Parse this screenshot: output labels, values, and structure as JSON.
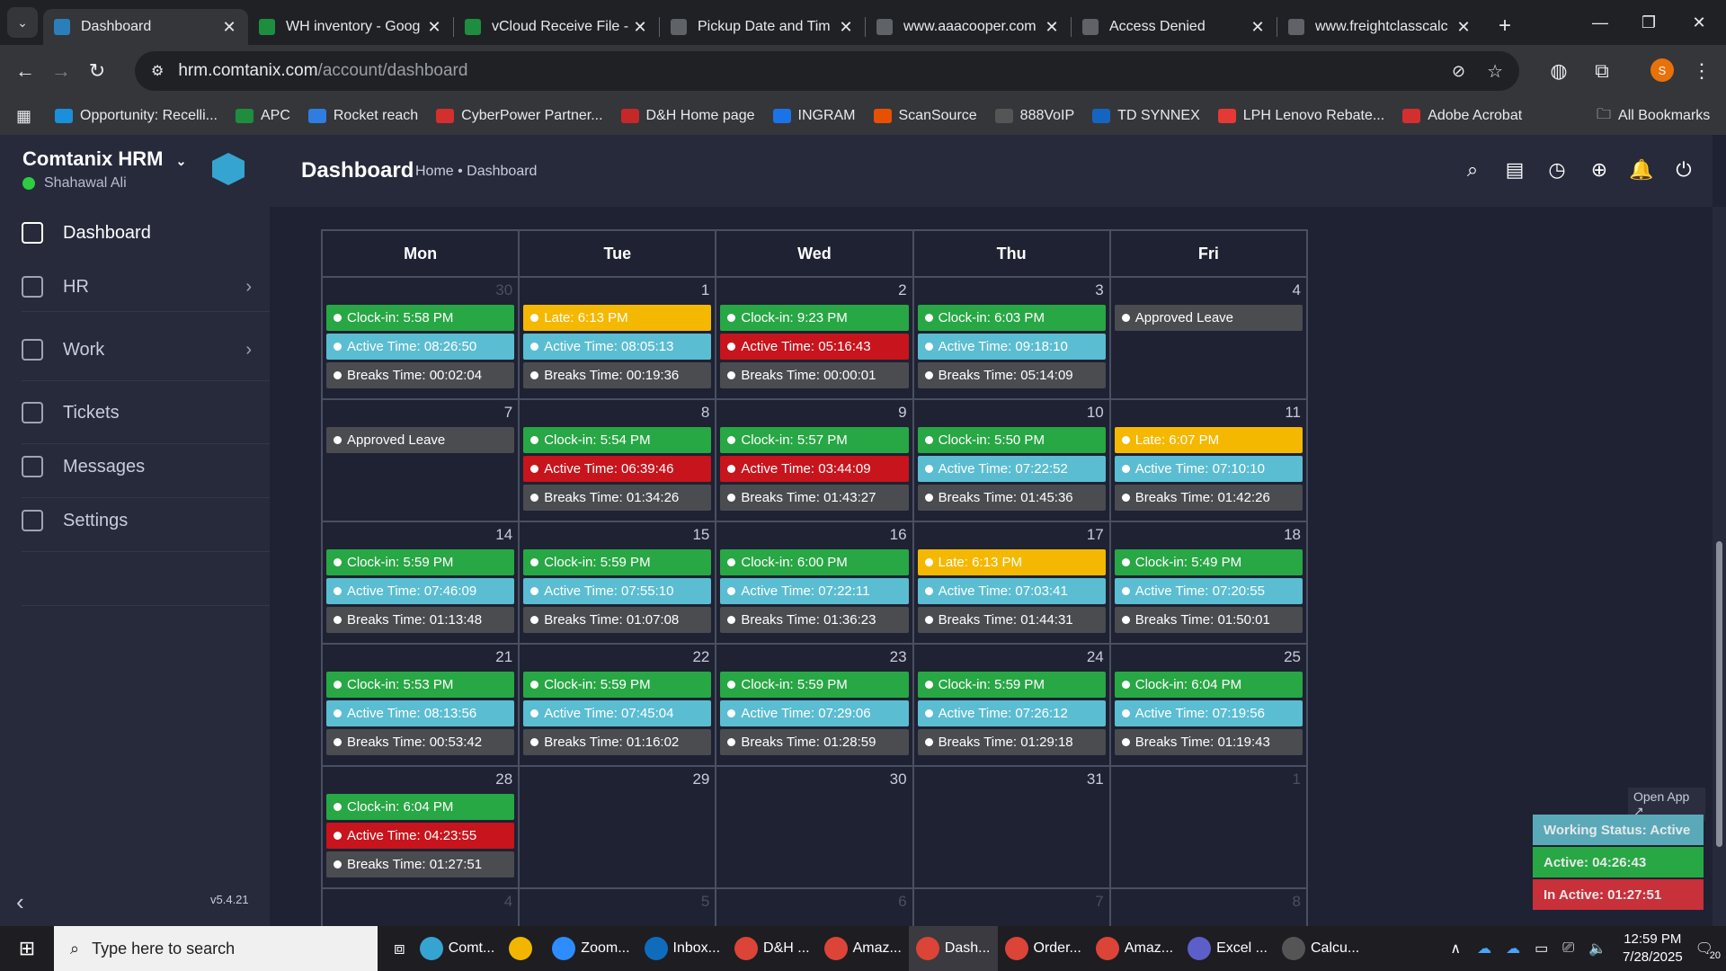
{
  "browser": {
    "tabs": [
      {
        "title": "Dashboard",
        "icon": "comtanix-icon",
        "color": "#2a7fb8",
        "active": true
      },
      {
        "title": "WH inventory - Goog",
        "icon": "sheets-icon",
        "color": "#1e8e3e"
      },
      {
        "title": "vCloud Receive File -",
        "icon": "sheets-icon",
        "color": "#1e8e3e"
      },
      {
        "title": "Pickup Date and Tim",
        "icon": "chatgpt-icon",
        "color": "#5f6368"
      },
      {
        "title": "www.aaacooper.com",
        "icon": "site-icon",
        "color": "#5f6368"
      },
      {
        "title": "Access Denied",
        "icon": "globe-icon",
        "color": "#5f6368"
      },
      {
        "title": "www.freightclasscalc",
        "icon": "fcc-icon",
        "color": "#5f6368"
      }
    ],
    "url_host": "hrm.comtanix.com",
    "url_path": "/account/dashboard",
    "bookmarks": [
      {
        "label": "Opportunity: Recelli...",
        "color": "#1a8fdc"
      },
      {
        "label": "APC",
        "color": "#1e8e3e"
      },
      {
        "label": "Rocket reach",
        "color": "#2f7de1"
      },
      {
        "label": "CyberPower Partner...",
        "color": "#d32f2f"
      },
      {
        "label": "D&H Home page",
        "color": "#c62828"
      },
      {
        "label": "INGRAM",
        "color": "#1a73e8"
      },
      {
        "label": "ScanSource",
        "color": "#e65100"
      },
      {
        "label": "888VoIP",
        "color": "#555555"
      },
      {
        "label": "TD SYNNEX",
        "color": "#1565c0"
      },
      {
        "label": "LPH Lenovo Rebate...",
        "color": "#e53935"
      },
      {
        "label": "Adobe Acrobat",
        "color": "#d32f2f"
      }
    ],
    "all_bookmarks": "All Bookmarks",
    "profile_initial": "S"
  },
  "sidebar": {
    "brand": "Comtanix HRM",
    "user": "Shahawal Ali",
    "items": [
      {
        "label": "Dashboard",
        "icon": "home-icon"
      },
      {
        "label": "HR",
        "icon": "users-icon"
      },
      {
        "label": "Work",
        "icon": "briefcase-icon"
      },
      {
        "label": "Tickets",
        "icon": "headset-icon"
      },
      {
        "label": "Messages",
        "icon": "message-icon"
      },
      {
        "label": "Settings",
        "icon": "gear-icon"
      }
    ],
    "version": "v5.4.21"
  },
  "header": {
    "title": "Dashboard",
    "breadcrumb": "Home • Dashboard"
  },
  "calendar": {
    "days": [
      "Mon",
      "Tue",
      "Wed",
      "Thu",
      "Fri"
    ],
    "weeks": [
      [
        {
          "day": "30",
          "muted": true,
          "events": [
            [
              "green",
              "Clock-in: 5:58 PM"
            ],
            [
              "cyan",
              "Active Time: 08:26:50"
            ],
            [
              "gray",
              "Breaks Time: 00:02:04"
            ]
          ]
        },
        {
          "day": "1",
          "events": [
            [
              "yellow",
              "Late: 6:13 PM"
            ],
            [
              "cyan",
              "Active Time: 08:05:13"
            ],
            [
              "gray",
              "Breaks Time: 00:19:36"
            ]
          ]
        },
        {
          "day": "2",
          "events": [
            [
              "green",
              "Clock-in: 9:23 PM"
            ],
            [
              "red",
              "Active Time: 05:16:43"
            ],
            [
              "gray",
              "Breaks Time: 00:00:01"
            ]
          ]
        },
        {
          "day": "3",
          "events": [
            [
              "green",
              "Clock-in: 6:03 PM"
            ],
            [
              "cyan",
              "Active Time: 09:18:10"
            ],
            [
              "gray",
              "Breaks Time: 05:14:09"
            ]
          ]
        },
        {
          "day": "4",
          "events": [
            [
              "gray",
              "Approved Leave"
            ]
          ]
        }
      ],
      [
        {
          "day": "7",
          "events": [
            [
              "gray",
              "Approved Leave"
            ]
          ]
        },
        {
          "day": "8",
          "events": [
            [
              "green",
              "Clock-in: 5:54 PM"
            ],
            [
              "red",
              "Active Time: 06:39:46"
            ],
            [
              "gray",
              "Breaks Time: 01:34:26"
            ]
          ]
        },
        {
          "day": "9",
          "events": [
            [
              "green",
              "Clock-in: 5:57 PM"
            ],
            [
              "red",
              "Active Time: 03:44:09"
            ],
            [
              "gray",
              "Breaks Time: 01:43:27"
            ]
          ]
        },
        {
          "day": "10",
          "events": [
            [
              "green",
              "Clock-in: 5:50 PM"
            ],
            [
              "cyan",
              "Active Time: 07:22:52"
            ],
            [
              "gray",
              "Breaks Time: 01:45:36"
            ]
          ]
        },
        {
          "day": "11",
          "events": [
            [
              "yellow",
              "Late: 6:07 PM"
            ],
            [
              "cyan",
              "Active Time: 07:10:10"
            ],
            [
              "gray",
              "Breaks Time: 01:42:26"
            ]
          ]
        }
      ],
      [
        {
          "day": "14",
          "events": [
            [
              "green",
              "Clock-in: 5:59 PM"
            ],
            [
              "cyan",
              "Active Time: 07:46:09"
            ],
            [
              "gray",
              "Breaks Time: 01:13:48"
            ]
          ]
        },
        {
          "day": "15",
          "events": [
            [
              "green",
              "Clock-in: 5:59 PM"
            ],
            [
              "cyan",
              "Active Time: 07:55:10"
            ],
            [
              "gray",
              "Breaks Time: 01:07:08"
            ]
          ]
        },
        {
          "day": "16",
          "events": [
            [
              "green",
              "Clock-in: 6:00 PM"
            ],
            [
              "cyan",
              "Active Time: 07:22:11"
            ],
            [
              "gray",
              "Breaks Time: 01:36:23"
            ]
          ]
        },
        {
          "day": "17",
          "events": [
            [
              "yellow",
              "Late: 6:13 PM"
            ],
            [
              "cyan",
              "Active Time: 07:03:41"
            ],
            [
              "gray",
              "Breaks Time: 01:44:31"
            ]
          ]
        },
        {
          "day": "18",
          "events": [
            [
              "green",
              "Clock-in: 5:49 PM"
            ],
            [
              "cyan",
              "Active Time: 07:20:55"
            ],
            [
              "gray",
              "Breaks Time: 01:50:01"
            ]
          ]
        }
      ],
      [
        {
          "day": "21",
          "events": [
            [
              "green",
              "Clock-in: 5:53 PM"
            ],
            [
              "cyan",
              "Active Time: 08:13:56"
            ],
            [
              "gray",
              "Breaks Time: 00:53:42"
            ]
          ]
        },
        {
          "day": "22",
          "events": [
            [
              "green",
              "Clock-in: 5:59 PM"
            ],
            [
              "cyan",
              "Active Time: 07:45:04"
            ],
            [
              "gray",
              "Breaks Time: 01:16:02"
            ]
          ]
        },
        {
          "day": "23",
          "events": [
            [
              "green",
              "Clock-in: 5:59 PM"
            ],
            [
              "cyan",
              "Active Time: 07:29:06"
            ],
            [
              "gray",
              "Breaks Time: 01:28:59"
            ]
          ]
        },
        {
          "day": "24",
          "events": [
            [
              "green",
              "Clock-in: 5:59 PM"
            ],
            [
              "cyan",
              "Active Time: 07:26:12"
            ],
            [
              "gray",
              "Breaks Time: 01:29:18"
            ]
          ]
        },
        {
          "day": "25",
          "events": [
            [
              "green",
              "Clock-in: 6:04 PM"
            ],
            [
              "cyan",
              "Active Time: 07:19:56"
            ],
            [
              "gray",
              "Breaks Time: 01:19:43"
            ]
          ]
        }
      ],
      [
        {
          "day": "28",
          "events": [
            [
              "green",
              "Clock-in: 6:04 PM"
            ],
            [
              "red",
              "Active Time: 04:23:55"
            ],
            [
              "gray",
              "Breaks Time: 01:27:51"
            ]
          ]
        },
        {
          "day": "29",
          "events": []
        },
        {
          "day": "30",
          "events": []
        },
        {
          "day": "31",
          "events": []
        },
        {
          "day": "1",
          "muted": true,
          "events": []
        }
      ],
      [
        {
          "day": "4",
          "muted": true,
          "events": []
        },
        {
          "day": "5",
          "muted": true,
          "events": []
        },
        {
          "day": "6",
          "muted": true,
          "events": []
        },
        {
          "day": "7",
          "muted": true,
          "events": []
        },
        {
          "day": "8",
          "muted": true,
          "events": []
        }
      ]
    ]
  },
  "widget": {
    "open_app": "Open App ↗",
    "status": "Working Status: Active",
    "active": "Active: 04:26:43",
    "inactive": "In Active: 01:27:51"
  },
  "taskbar": {
    "search_placeholder": "Type here to search",
    "apps": [
      {
        "label": "Comt...",
        "color": "#35a4d1"
      },
      {
        "label": "",
        "color": "#f2b600"
      },
      {
        "label": "Zoom...",
        "color": "#2d8cff"
      },
      {
        "label": "Inbox...",
        "color": "#0f6cbd"
      },
      {
        "label": "D&H ...",
        "color": "#db4437"
      },
      {
        "label": "Amaz...",
        "color": "#db4437"
      },
      {
        "label": "Dash...",
        "color": "#db4437",
        "active": true
      },
      {
        "label": "Order...",
        "color": "#db4437"
      },
      {
        "label": "Amaz...",
        "color": "#db4437"
      },
      {
        "label": "Excel ...",
        "color": "#5b5fc7"
      },
      {
        "label": "Calcu...",
        "color": "#555555"
      }
    ],
    "time": "12:59 PM",
    "date": "7/28/2025",
    "notif_count": "20"
  },
  "colors": {
    "green": "#28a745",
    "cyan": "#5bbdd2",
    "gray": "#4a4c50",
    "red": "#c8141c",
    "yellow": "#f5b800"
  }
}
